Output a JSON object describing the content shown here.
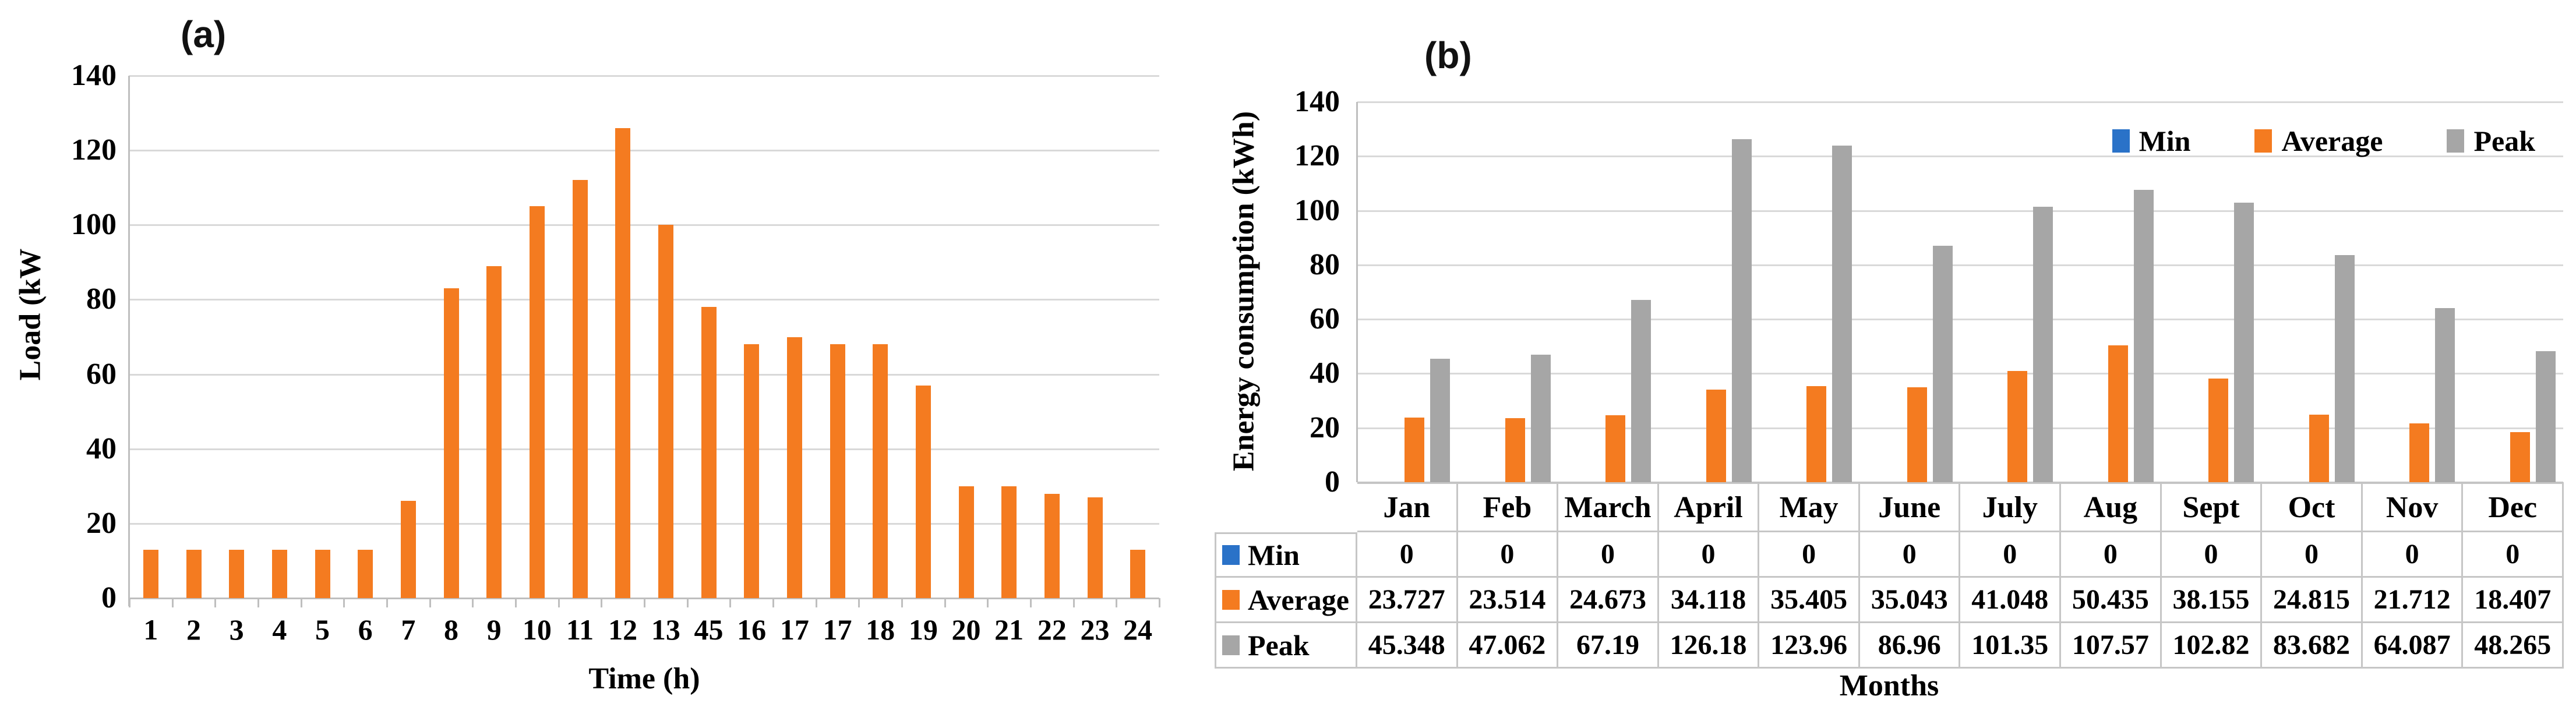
{
  "figure": {
    "background": "#ffffff",
    "colors": {
      "orange": "#F47B20",
      "gray": "#A6A6A6",
      "blue": "#2A72C8",
      "gridline": "#D9D9D9",
      "axis_line": "#BFBFBF",
      "table_line": "#C6C6C6"
    }
  },
  "chart_data": [
    {
      "id": "load-profile",
      "type": "bar",
      "panel_label": "(a)",
      "xlabel": "Time (h)",
      "ylabel": "Load (kW",
      "ylim": [
        0,
        140
      ],
      "yticks": [
        0,
        20,
        40,
        60,
        80,
        100,
        120,
        140
      ],
      "grid": "horizontal",
      "bar_color_key": "orange",
      "categories": [
        "1",
        "2",
        "3",
        "4",
        "5",
        "6",
        "7",
        "8",
        "9",
        "10",
        "11",
        "12",
        "13",
        "45",
        "16",
        "17",
        "17",
        "18",
        "19",
        "20",
        "21",
        "22",
        "23",
        "24"
      ],
      "values": [
        13,
        13,
        13,
        13,
        13,
        13,
        26,
        83,
        89,
        105,
        112,
        126,
        100,
        78,
        68,
        70,
        68,
        68,
        57,
        30,
        30,
        28,
        27,
        13
      ]
    },
    {
      "id": "energy-consumption",
      "type": "bar",
      "panel_label": "(b)",
      "xlabel": "Months",
      "ylabel": "Energy consumption (kWh)",
      "ylim": [
        0,
        140
      ],
      "yticks": [
        0,
        20,
        40,
        60,
        80,
        100,
        120,
        140
      ],
      "grid": "horizontal",
      "legend_position": "top-right",
      "categories": [
        "Jan",
        "Feb",
        "March",
        "April",
        "May",
        "June",
        "July",
        "Aug",
        "Sept",
        "Oct",
        "Nov",
        "Dec"
      ],
      "series": [
        {
          "name": "Min",
          "color_key": "blue",
          "values": [
            0,
            0,
            0,
            0,
            0,
            0,
            0,
            0,
            0,
            0,
            0,
            0
          ],
          "display": [
            "0",
            "0",
            "0",
            "0",
            "0",
            "0",
            "0",
            "0",
            "0",
            "0",
            "0",
            "0"
          ]
        },
        {
          "name": "Average",
          "color_key": "orange",
          "values": [
            23.727,
            23.514,
            24.673,
            34.118,
            35.405,
            35.043,
            41.048,
            50.435,
            38.155,
            24.815,
            21.712,
            18.407
          ],
          "display": [
            "23.727",
            "23.514",
            "24.673",
            "34.118",
            "35.405",
            "35.043",
            "41.048",
            "50.435",
            "38.155",
            "24.815",
            "21.712",
            "18.407"
          ]
        },
        {
          "name": "Peak",
          "color_key": "gray",
          "values": [
            45.348,
            47.062,
            67.19,
            126.18,
            123.96,
            86.96,
            101.35,
            107.57,
            102.82,
            83.682,
            64.087,
            48.265
          ],
          "display": [
            "45.348",
            "47.062",
            "67.19",
            "126.18",
            "123.96",
            "86.96",
            "101.35",
            "107.57",
            "102.82",
            "83.682",
            "64.087",
            "48.265"
          ]
        }
      ]
    }
  ]
}
